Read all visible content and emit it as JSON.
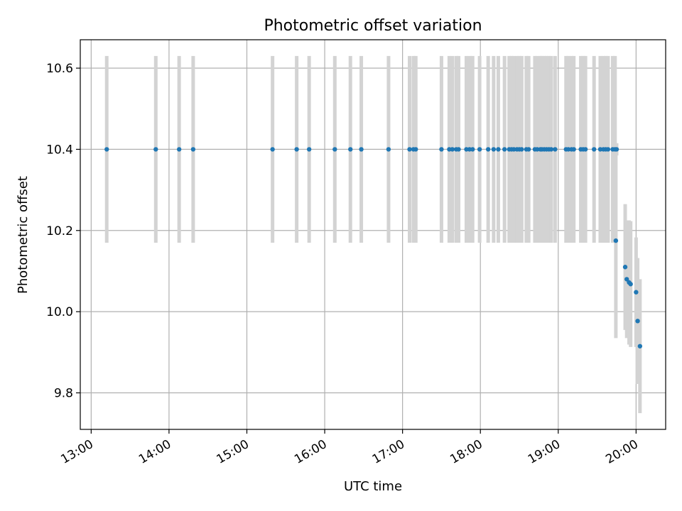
{
  "chart_data": {
    "type": "scatter",
    "title": "Photometric offset variation",
    "xlabel": "UTC time",
    "ylabel": "Photometric offset",
    "x_unit": "hours (UTC)",
    "xlim": [
      12.86,
      20.38
    ],
    "ylim": [
      9.71,
      10.67
    ],
    "xticks": [
      {
        "value": 13,
        "label": "13:00"
      },
      {
        "value": 14,
        "label": "14:00"
      },
      {
        "value": 15,
        "label": "15:00"
      },
      {
        "value": 16,
        "label": "16:00"
      },
      {
        "value": 17,
        "label": "17:00"
      },
      {
        "value": 18,
        "label": "18:00"
      },
      {
        "value": 19,
        "label": "19:00"
      },
      {
        "value": 20,
        "label": "20:00"
      }
    ],
    "yticks": [
      {
        "value": 9.8,
        "label": "9.8"
      },
      {
        "value": 10.0,
        "label": "10.0"
      },
      {
        "value": 10.2,
        "label": "10.2"
      },
      {
        "value": 10.4,
        "label": "10.4"
      },
      {
        "value": 10.6,
        "label": "10.6"
      }
    ],
    "grid": true,
    "colors": {
      "points": "#1f77b4",
      "errorbars": "#d3d3d3",
      "grid": "#b0b0b0",
      "frame": "#000000"
    },
    "series": [
      {
        "x": [
          13.2,
          13.83,
          14.13,
          14.31,
          15.33,
          15.64,
          15.8,
          16.13,
          16.33,
          16.47,
          16.82,
          17.09,
          17.14,
          17.17,
          17.5,
          17.6,
          17.64,
          17.69,
          17.72,
          17.82,
          17.86,
          17.9,
          17.99,
          18.1,
          18.17,
          18.23,
          18.31,
          18.37,
          18.4,
          18.43,
          18.47,
          18.5,
          18.53,
          18.59,
          18.62,
          18.7,
          18.73,
          18.77,
          18.79,
          18.82,
          18.85,
          18.88,
          18.91,
          18.96,
          19.1,
          19.13,
          19.17,
          19.2,
          19.29,
          19.32,
          19.35,
          19.46,
          19.54,
          19.58,
          19.61,
          19.64,
          19.7,
          19.73,
          19.75,
          19.74,
          19.86,
          19.88,
          19.91,
          19.93,
          20.0,
          20.02,
          20.05
        ],
        "y": [
          10.4,
          10.4,
          10.4,
          10.4,
          10.4,
          10.4,
          10.4,
          10.4,
          10.4,
          10.4,
          10.4,
          10.4,
          10.4,
          10.4,
          10.4,
          10.4,
          10.4,
          10.4,
          10.4,
          10.4,
          10.4,
          10.4,
          10.4,
          10.4,
          10.4,
          10.4,
          10.4,
          10.4,
          10.4,
          10.4,
          10.4,
          10.4,
          10.4,
          10.4,
          10.4,
          10.4,
          10.4,
          10.4,
          10.4,
          10.4,
          10.4,
          10.4,
          10.4,
          10.4,
          10.4,
          10.4,
          10.4,
          10.4,
          10.4,
          10.4,
          10.4,
          10.4,
          10.4,
          10.4,
          10.4,
          10.4,
          10.4,
          10.4,
          10.4,
          10.175,
          10.11,
          10.08,
          10.072,
          10.068,
          10.048,
          9.977,
          9.915
        ],
        "yerr": [
          0.23,
          0.23,
          0.23,
          0.23,
          0.23,
          0.23,
          0.23,
          0.23,
          0.23,
          0.23,
          0.23,
          0.23,
          0.23,
          0.23,
          0.23,
          0.23,
          0.23,
          0.23,
          0.23,
          0.23,
          0.23,
          0.23,
          0.23,
          0.23,
          0.23,
          0.23,
          0.23,
          0.23,
          0.23,
          0.23,
          0.23,
          0.23,
          0.23,
          0.23,
          0.23,
          0.23,
          0.23,
          0.23,
          0.23,
          0.23,
          0.23,
          0.23,
          0.23,
          0.23,
          0.23,
          0.23,
          0.23,
          0.23,
          0.23,
          0.23,
          0.23,
          0.23,
          0.23,
          0.23,
          0.23,
          0.23,
          0.23,
          0.23,
          0.015,
          0.24,
          0.155,
          0.145,
          0.153,
          0.155,
          0.135,
          0.155,
          0.165
        ]
      }
    ]
  }
}
